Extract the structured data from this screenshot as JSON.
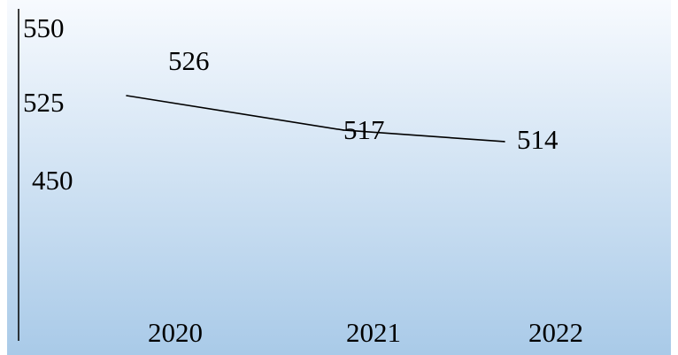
{
  "chart_data": {
    "type": "line",
    "title": "",
    "xlabel": "",
    "ylabel": "",
    "categories": [
      "2020",
      "2021",
      "2022"
    ],
    "series": [
      {
        "values": [
          526,
          517,
          514
        ]
      }
    ],
    "data_labels": [
      "526",
      "517",
      "514"
    ],
    "y_tick_labels": [
      "550",
      "525",
      "450"
    ],
    "grid": false,
    "legend": "none"
  },
  "colors": {
    "background_top": "#f7fafe",
    "background_bottom": "#a9cae8",
    "line": "#000000",
    "axis": "#000000",
    "text": "#000000"
  }
}
